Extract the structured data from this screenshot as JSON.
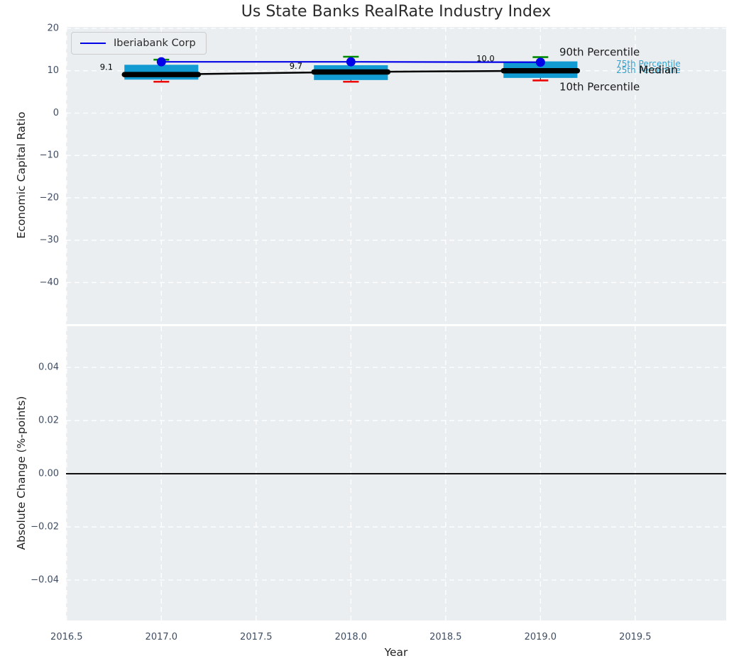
{
  "title": "Us State Banks RealRate Industry Index",
  "legend": {
    "label": "Iberiabank Corp",
    "line_color": "#0202e8"
  },
  "x_axis": {
    "label": "Year",
    "lim": [
      2016.497,
      2019.98
    ],
    "ticks": [
      {
        "label": "2016.5",
        "value": 2016.5
      },
      {
        "label": "2017.0",
        "value": 2017.0
      },
      {
        "label": "2017.5",
        "value": 2017.5
      },
      {
        "label": "2018.0",
        "value": 2018.0
      },
      {
        "label": "2018.5",
        "value": 2018.5
      },
      {
        "label": "2019.0",
        "value": 2019.0
      },
      {
        "label": "2019.5",
        "value": 2019.5
      }
    ]
  },
  "chart_data": [
    {
      "type": "box",
      "title": "Us State Banks RealRate Industry Index",
      "ylabel": "Economic Capital Ratio",
      "ylim": [
        -49.8,
        20.33
      ],
      "grid": "white dashed on light background",
      "legend_position": "upper left",
      "yticks": [
        {
          "label": "20",
          "value": 20
        },
        {
          "label": "10",
          "value": 10
        },
        {
          "label": "0",
          "value": 0
        },
        {
          "label": "−10",
          "value": -10
        },
        {
          "label": "−20",
          "value": -20
        },
        {
          "label": "−30",
          "value": -30
        },
        {
          "label": "−40",
          "value": -40
        }
      ],
      "categories": [
        2017,
        2018,
        2019
      ],
      "boxes": [
        {
          "year": 2017,
          "p10": 7.4,
          "p25": 7.9,
          "median": 9.1,
          "p75": 11.4,
          "p90": 12.6
        },
        {
          "year": 2018,
          "p10": 7.4,
          "p25": 7.8,
          "median": 9.7,
          "p75": 11.3,
          "p90": 13.3
        },
        {
          "year": 2019,
          "p10": 7.7,
          "p25": 8.3,
          "median": 10.0,
          "p75": 12.2,
          "p90": 13.2
        }
      ],
      "median_line_values": [
        9.1,
        9.7,
        10.0
      ],
      "series": [
        {
          "name": "Iberiabank Corp",
          "x": [
            2017,
            2018,
            2019
          ],
          "values": [
            12.1,
            12.1,
            12.0
          ],
          "color": "#0202e8",
          "marker": "circle"
        }
      ],
      "annotations": [
        {
          "text": "9.1",
          "x": 2016.71,
          "y": 10.9
        },
        {
          "text": "9.7",
          "x": 2017.71,
          "y": 11.1
        },
        {
          "text": "10.0",
          "x": 2018.71,
          "y": 12.9
        }
      ],
      "percentile_labels": [
        {
          "text": "90th Percentile",
          "x": 2019.1,
          "y": 14.4,
          "color": "#1a1a1a",
          "size": 15
        },
        {
          "text": "75th Percentile",
          "x": 2019.4,
          "y": 11.6,
          "color": "#2fa3d0",
          "size": 12
        },
        {
          "text": "25th Percentile",
          "x": 2019.4,
          "y": 10.1,
          "color": "#2fa3d0",
          "size": 12
        },
        {
          "text": "Median",
          "x": 2019.52,
          "y": 10.2,
          "color": "#111111",
          "size": 15
        },
        {
          "text": "10th Percentile",
          "x": 2019.1,
          "y": 6.2,
          "color": "#1a1a1a",
          "size": 15
        }
      ],
      "colors": {
        "box": "#129ad2",
        "p90_cap": "#008c00",
        "p10_cap": "#ee0000",
        "median": "#000000",
        "whisker": "#333333"
      }
    },
    {
      "type": "empty",
      "ylabel": "Absolute Change (%-points)",
      "xlabel": "Year",
      "ylim": [
        -0.0552,
        0.0555
      ],
      "yticks": [
        {
          "label": "0.04",
          "value": 0.04
        },
        {
          "label": "0.02",
          "value": 0.02
        },
        {
          "label": "0.00",
          "value": 0.0
        },
        {
          "label": "−0.02",
          "value": -0.02
        },
        {
          "label": "−0.04",
          "value": -0.04
        }
      ],
      "zero_line": {
        "value": 0.0,
        "color": "#000000"
      }
    }
  ],
  "style": {
    "plot_bg": "#eaeef0",
    "grid_color": "#ffffff",
    "tick_color": "#3f4d63",
    "title_color": "#2a2a2a"
  }
}
